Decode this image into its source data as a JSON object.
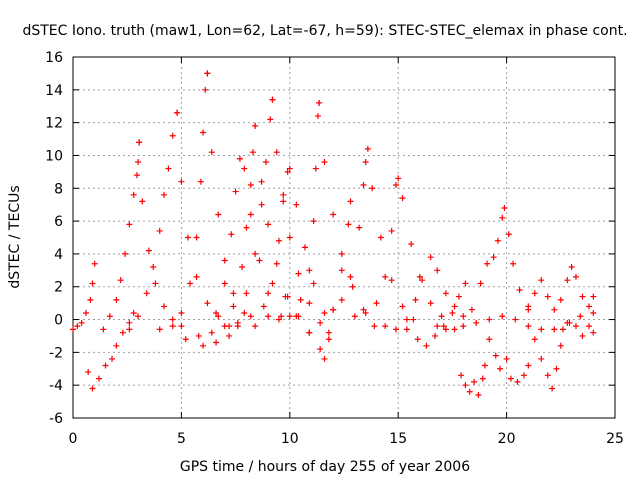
{
  "chart_data": {
    "type": "scatter",
    "title": "dSTEC Iono. truth (maw1, Lon=62, Lat=-67, h=59): STEC-STEC_elemax in phase cont.",
    "xlabel": "GPS time / hours of day 255 of year 2006",
    "ylabel": "dSTEC  / TECUs",
    "xlim": [
      0,
      25
    ],
    "ylim": [
      -6,
      16
    ],
    "x_ticks": [
      0,
      5,
      10,
      15,
      20,
      25
    ],
    "y_ticks": [
      -6,
      -4,
      -2,
      0,
      2,
      4,
      6,
      8,
      10,
      12,
      14,
      16
    ],
    "x_tick_labels": [
      "0",
      "5",
      "10",
      "15",
      "20",
      "25"
    ],
    "y_tick_labels": [
      "-6",
      "-4",
      "-2",
      "0",
      "2",
      "4",
      "6",
      "8",
      "10",
      "12",
      "14",
      "16"
    ],
    "grid": true,
    "marker": "plus",
    "color": "#ff0000",
    "series": [
      {
        "values": [
          [
            0.0,
            -0.6
          ],
          [
            0.2,
            -0.4
          ],
          [
            0.4,
            -0.2
          ],
          [
            0.6,
            0.4
          ],
          [
            0.8,
            1.2
          ],
          [
            0.9,
            2.2
          ],
          [
            1.0,
            3.4
          ]
        ]
      },
      {
        "values": [
          [
            0.7,
            -3.2
          ],
          [
            0.9,
            -4.2
          ],
          [
            1.2,
            -3.6
          ],
          [
            1.5,
            -2.8
          ],
          [
            1.8,
            -2.4
          ],
          [
            2.0,
            -1.6
          ],
          [
            2.3,
            -0.8
          ],
          [
            2.6,
            -0.2
          ],
          [
            2.8,
            0.4
          ]
        ]
      },
      {
        "values": [
          [
            1.4,
            -0.6
          ],
          [
            1.7,
            0.2
          ],
          [
            2.0,
            1.2
          ],
          [
            2.2,
            2.4
          ],
          [
            2.4,
            4.0
          ],
          [
            2.6,
            5.8
          ],
          [
            2.8,
            7.6
          ],
          [
            2.95,
            8.8
          ],
          [
            3.0,
            9.6
          ],
          [
            3.05,
            10.8
          ]
        ]
      },
      {
        "values": [
          [
            3.05,
            10.8
          ],
          [
            3.2,
            7.2
          ],
          [
            3.5,
            4.2
          ],
          [
            3.8,
            2.2
          ],
          [
            4.2,
            0.8
          ],
          [
            4.6,
            0.0
          ],
          [
            5.0,
            -0.4
          ]
        ]
      },
      {
        "values": [
          [
            2.6,
            -0.6
          ],
          [
            3.0,
            0.2
          ],
          [
            3.4,
            1.6
          ],
          [
            3.7,
            3.2
          ],
          [
            4.0,
            5.4
          ],
          [
            4.2,
            7.6
          ],
          [
            4.4,
            9.2
          ],
          [
            4.6,
            11.2
          ],
          [
            4.8,
            12.6
          ]
        ]
      },
      {
        "values": [
          [
            4.8,
            12.6
          ],
          [
            5.0,
            8.4
          ],
          [
            5.3,
            5.0
          ],
          [
            5.7,
            2.6
          ],
          [
            6.2,
            1.0
          ],
          [
            6.7,
            0.2
          ],
          [
            7.2,
            -0.4
          ]
        ]
      },
      {
        "values": [
          [
            4.0,
            -0.6
          ],
          [
            4.6,
            -0.4
          ],
          [
            5.0,
            0.4
          ],
          [
            5.4,
            2.2
          ],
          [
            5.7,
            5.0
          ],
          [
            5.9,
            8.4
          ],
          [
            6.0,
            11.4
          ],
          [
            6.1,
            14.0
          ],
          [
            6.2,
            15.0
          ]
        ]
      },
      {
        "values": [
          [
            6.2,
            15.0
          ],
          [
            6.4,
            10.2
          ],
          [
            6.7,
            6.4
          ],
          [
            7.0,
            3.6
          ],
          [
            7.4,
            1.6
          ],
          [
            7.9,
            0.4
          ],
          [
            8.4,
            -0.4
          ]
        ]
      },
      {
        "values": [
          [
            5.2,
            -1.2
          ],
          [
            5.8,
            -1.0
          ],
          [
            6.4,
            -0.8
          ],
          [
            7.0,
            -0.4
          ],
          [
            7.4,
            0.8
          ],
          [
            7.8,
            3.2
          ],
          [
            8.0,
            5.6
          ],
          [
            8.2,
            8.2
          ],
          [
            8.3,
            10.2
          ],
          [
            8.4,
            11.8
          ]
        ]
      },
      {
        "values": [
          [
            8.4,
            11.8
          ],
          [
            8.7,
            8.4
          ],
          [
            9.0,
            5.8
          ],
          [
            9.4,
            3.4
          ],
          [
            9.9,
            1.4
          ],
          [
            10.4,
            0.2
          ],
          [
            10.9,
            -0.8
          ]
        ]
      },
      {
        "values": [
          [
            6.0,
            -1.6
          ],
          [
            6.6,
            -1.4
          ],
          [
            7.2,
            -1.0
          ],
          [
            7.6,
            -0.2
          ],
          [
            8.0,
            1.6
          ],
          [
            8.4,
            4.0
          ],
          [
            8.7,
            7.0
          ],
          [
            8.9,
            9.6
          ],
          [
            9.1,
            12.2
          ],
          [
            9.2,
            13.4
          ]
        ]
      },
      {
        "values": [
          [
            9.2,
            13.4
          ],
          [
            9.4,
            10.2
          ],
          [
            9.7,
            7.6
          ],
          [
            10.0,
            5.0
          ],
          [
            10.4,
            2.8
          ],
          [
            10.9,
            1.0
          ],
          [
            11.4,
            -0.2
          ],
          [
            11.8,
            -0.8
          ]
        ]
      },
      {
        "values": [
          [
            6.6,
            0.4
          ],
          [
            7.0,
            2.2
          ],
          [
            7.3,
            5.2
          ],
          [
            7.5,
            7.8
          ],
          [
            7.7,
            9.8
          ],
          [
            7.9,
            9.2
          ],
          [
            8.2,
            6.4
          ],
          [
            8.6,
            3.6
          ],
          [
            9.0,
            1.6
          ],
          [
            9.6,
            0.2
          ]
        ]
      },
      {
        "values": [
          [
            7.6,
            -0.4
          ],
          [
            8.2,
            0.2
          ],
          [
            8.8,
            0.8
          ],
          [
            9.2,
            2.2
          ],
          [
            9.5,
            4.8
          ],
          [
            9.7,
            7.2
          ],
          [
            9.9,
            9.0
          ],
          [
            10.0,
            9.2
          ],
          [
            10.3,
            7.0
          ],
          [
            10.7,
            4.4
          ],
          [
            11.1,
            2.2
          ],
          [
            11.6,
            0.4
          ]
        ]
      },
      {
        "values": [
          [
            9.0,
            0.2
          ],
          [
            9.5,
            0.0
          ],
          [
            10.0,
            0.2
          ],
          [
            10.5,
            1.2
          ],
          [
            10.9,
            3.0
          ],
          [
            11.1,
            6.0
          ],
          [
            11.2,
            9.2
          ],
          [
            11.3,
            12.4
          ],
          [
            11.35,
            13.2
          ]
        ]
      },
      {
        "values": [
          [
            11.35,
            13.2
          ],
          [
            11.6,
            9.6
          ],
          [
            12.0,
            6.4
          ],
          [
            12.4,
            4.0
          ],
          [
            12.9,
            2.0
          ],
          [
            13.4,
            0.6
          ],
          [
            13.9,
            -0.4
          ]
        ]
      },
      {
        "values": [
          [
            9.8,
            1.4
          ],
          [
            10.3,
            0.2
          ],
          [
            10.9,
            -0.8
          ],
          [
            11.4,
            -1.8
          ],
          [
            11.6,
            -2.4
          ],
          [
            11.8,
            -1.2
          ],
          [
            12.0,
            0.6
          ],
          [
            12.4,
            3.0
          ],
          [
            12.7,
            5.8
          ],
          [
            12.8,
            7.2
          ]
        ]
      },
      {
        "values": [
          [
            12.0,
            0.6
          ],
          [
            12.4,
            1.2
          ],
          [
            12.8,
            2.6
          ],
          [
            13.2,
            5.6
          ],
          [
            13.4,
            8.2
          ],
          [
            13.5,
            9.6
          ],
          [
            13.6,
            10.4
          ],
          [
            13.8,
            8.0
          ],
          [
            14.2,
            5.0
          ],
          [
            14.7,
            2.4
          ],
          [
            15.2,
            0.8
          ],
          [
            15.7,
            0.0
          ]
        ]
      },
      {
        "values": [
          [
            13.0,
            0.2
          ],
          [
            13.5,
            0.4
          ],
          [
            14.0,
            1.0
          ],
          [
            14.4,
            2.6
          ],
          [
            14.7,
            5.4
          ],
          [
            14.9,
            8.2
          ],
          [
            15.0,
            8.6
          ],
          [
            15.2,
            7.4
          ],
          [
            15.6,
            4.6
          ],
          [
            16.0,
            2.6
          ],
          [
            16.5,
            1.0
          ],
          [
            17.0,
            0.2
          ]
        ]
      },
      {
        "values": [
          [
            14.4,
            -0.4
          ],
          [
            14.9,
            -0.6
          ],
          [
            15.4,
            0.0
          ],
          [
            15.8,
            1.2
          ],
          [
            16.1,
            2.4
          ],
          [
            16.5,
            3.8
          ],
          [
            16.8,
            3.0
          ],
          [
            17.2,
            1.6
          ],
          [
            17.6,
            0.8
          ],
          [
            18.0,
            0.2
          ]
        ]
      },
      {
        "values": [
          [
            15.4,
            -0.6
          ],
          [
            15.9,
            -1.2
          ],
          [
            16.3,
            -1.6
          ],
          [
            16.7,
            -1.0
          ],
          [
            17.1,
            -0.4
          ],
          [
            17.5,
            0.4
          ],
          [
            17.8,
            1.4
          ],
          [
            18.1,
            2.2
          ]
        ]
      },
      {
        "values": [
          [
            16.8,
            -0.4
          ],
          [
            17.2,
            -0.6
          ],
          [
            17.6,
            -0.6
          ],
          [
            18.0,
            -0.4
          ],
          [
            18.6,
            -0.2
          ],
          [
            19.2,
            0.0
          ],
          [
            19.8,
            0.2
          ],
          [
            20.4,
            0.0
          ],
          [
            21.0,
            -0.4
          ],
          [
            21.6,
            -0.6
          ],
          [
            22.2,
            -0.6
          ],
          [
            22.8,
            -0.2
          ],
          [
            23.4,
            0.2
          ],
          [
            24.0,
            0.4
          ]
        ]
      },
      {
        "values": [
          [
            17.9,
            -3.4
          ],
          [
            18.1,
            -4.0
          ],
          [
            18.3,
            -4.4
          ],
          [
            18.5,
            -3.8
          ],
          [
            18.7,
            -4.6
          ],
          [
            18.9,
            -3.6
          ],
          [
            19.0,
            -2.8
          ]
        ]
      },
      {
        "values": [
          [
            18.4,
            0.6
          ],
          [
            18.8,
            2.2
          ],
          [
            19.1,
            3.4
          ],
          [
            19.4,
            3.8
          ],
          [
            19.6,
            4.8
          ],
          [
            19.8,
            6.2
          ],
          [
            19.9,
            6.8
          ],
          [
            20.1,
            5.2
          ],
          [
            20.3,
            3.4
          ],
          [
            20.6,
            1.8
          ],
          [
            21.0,
            0.6
          ]
        ]
      },
      {
        "values": [
          [
            19.2,
            -1.2
          ],
          [
            19.5,
            -2.2
          ],
          [
            19.7,
            -3.0
          ],
          [
            20.0,
            -2.4
          ],
          [
            20.2,
            -3.6
          ],
          [
            20.5,
            -3.8
          ],
          [
            20.8,
            -3.4
          ],
          [
            21.0,
            -2.8
          ]
        ]
      },
      {
        "values": [
          [
            21.3,
            -1.2
          ],
          [
            21.6,
            -2.4
          ],
          [
            21.9,
            -3.4
          ],
          [
            22.1,
            -4.2
          ],
          [
            22.3,
            -3.0
          ],
          [
            22.5,
            -1.6
          ]
        ]
      },
      {
        "values": [
          [
            21.0,
            0.8
          ],
          [
            21.3,
            1.6
          ],
          [
            21.6,
            2.4
          ],
          [
            21.9,
            1.4
          ],
          [
            22.2,
            0.6
          ],
          [
            22.5,
            1.2
          ],
          [
            22.8,
            2.4
          ],
          [
            23.0,
            3.2
          ],
          [
            23.2,
            2.6
          ],
          [
            23.5,
            1.4
          ],
          [
            23.8,
            0.8
          ],
          [
            24.0,
            1.4
          ]
        ]
      },
      {
        "values": [
          [
            22.6,
            -0.6
          ],
          [
            22.9,
            -0.2
          ],
          [
            23.2,
            -0.4
          ],
          [
            23.5,
            -1.0
          ],
          [
            23.8,
            -0.4
          ],
          [
            24.0,
            -0.8
          ]
        ]
      }
    ]
  }
}
